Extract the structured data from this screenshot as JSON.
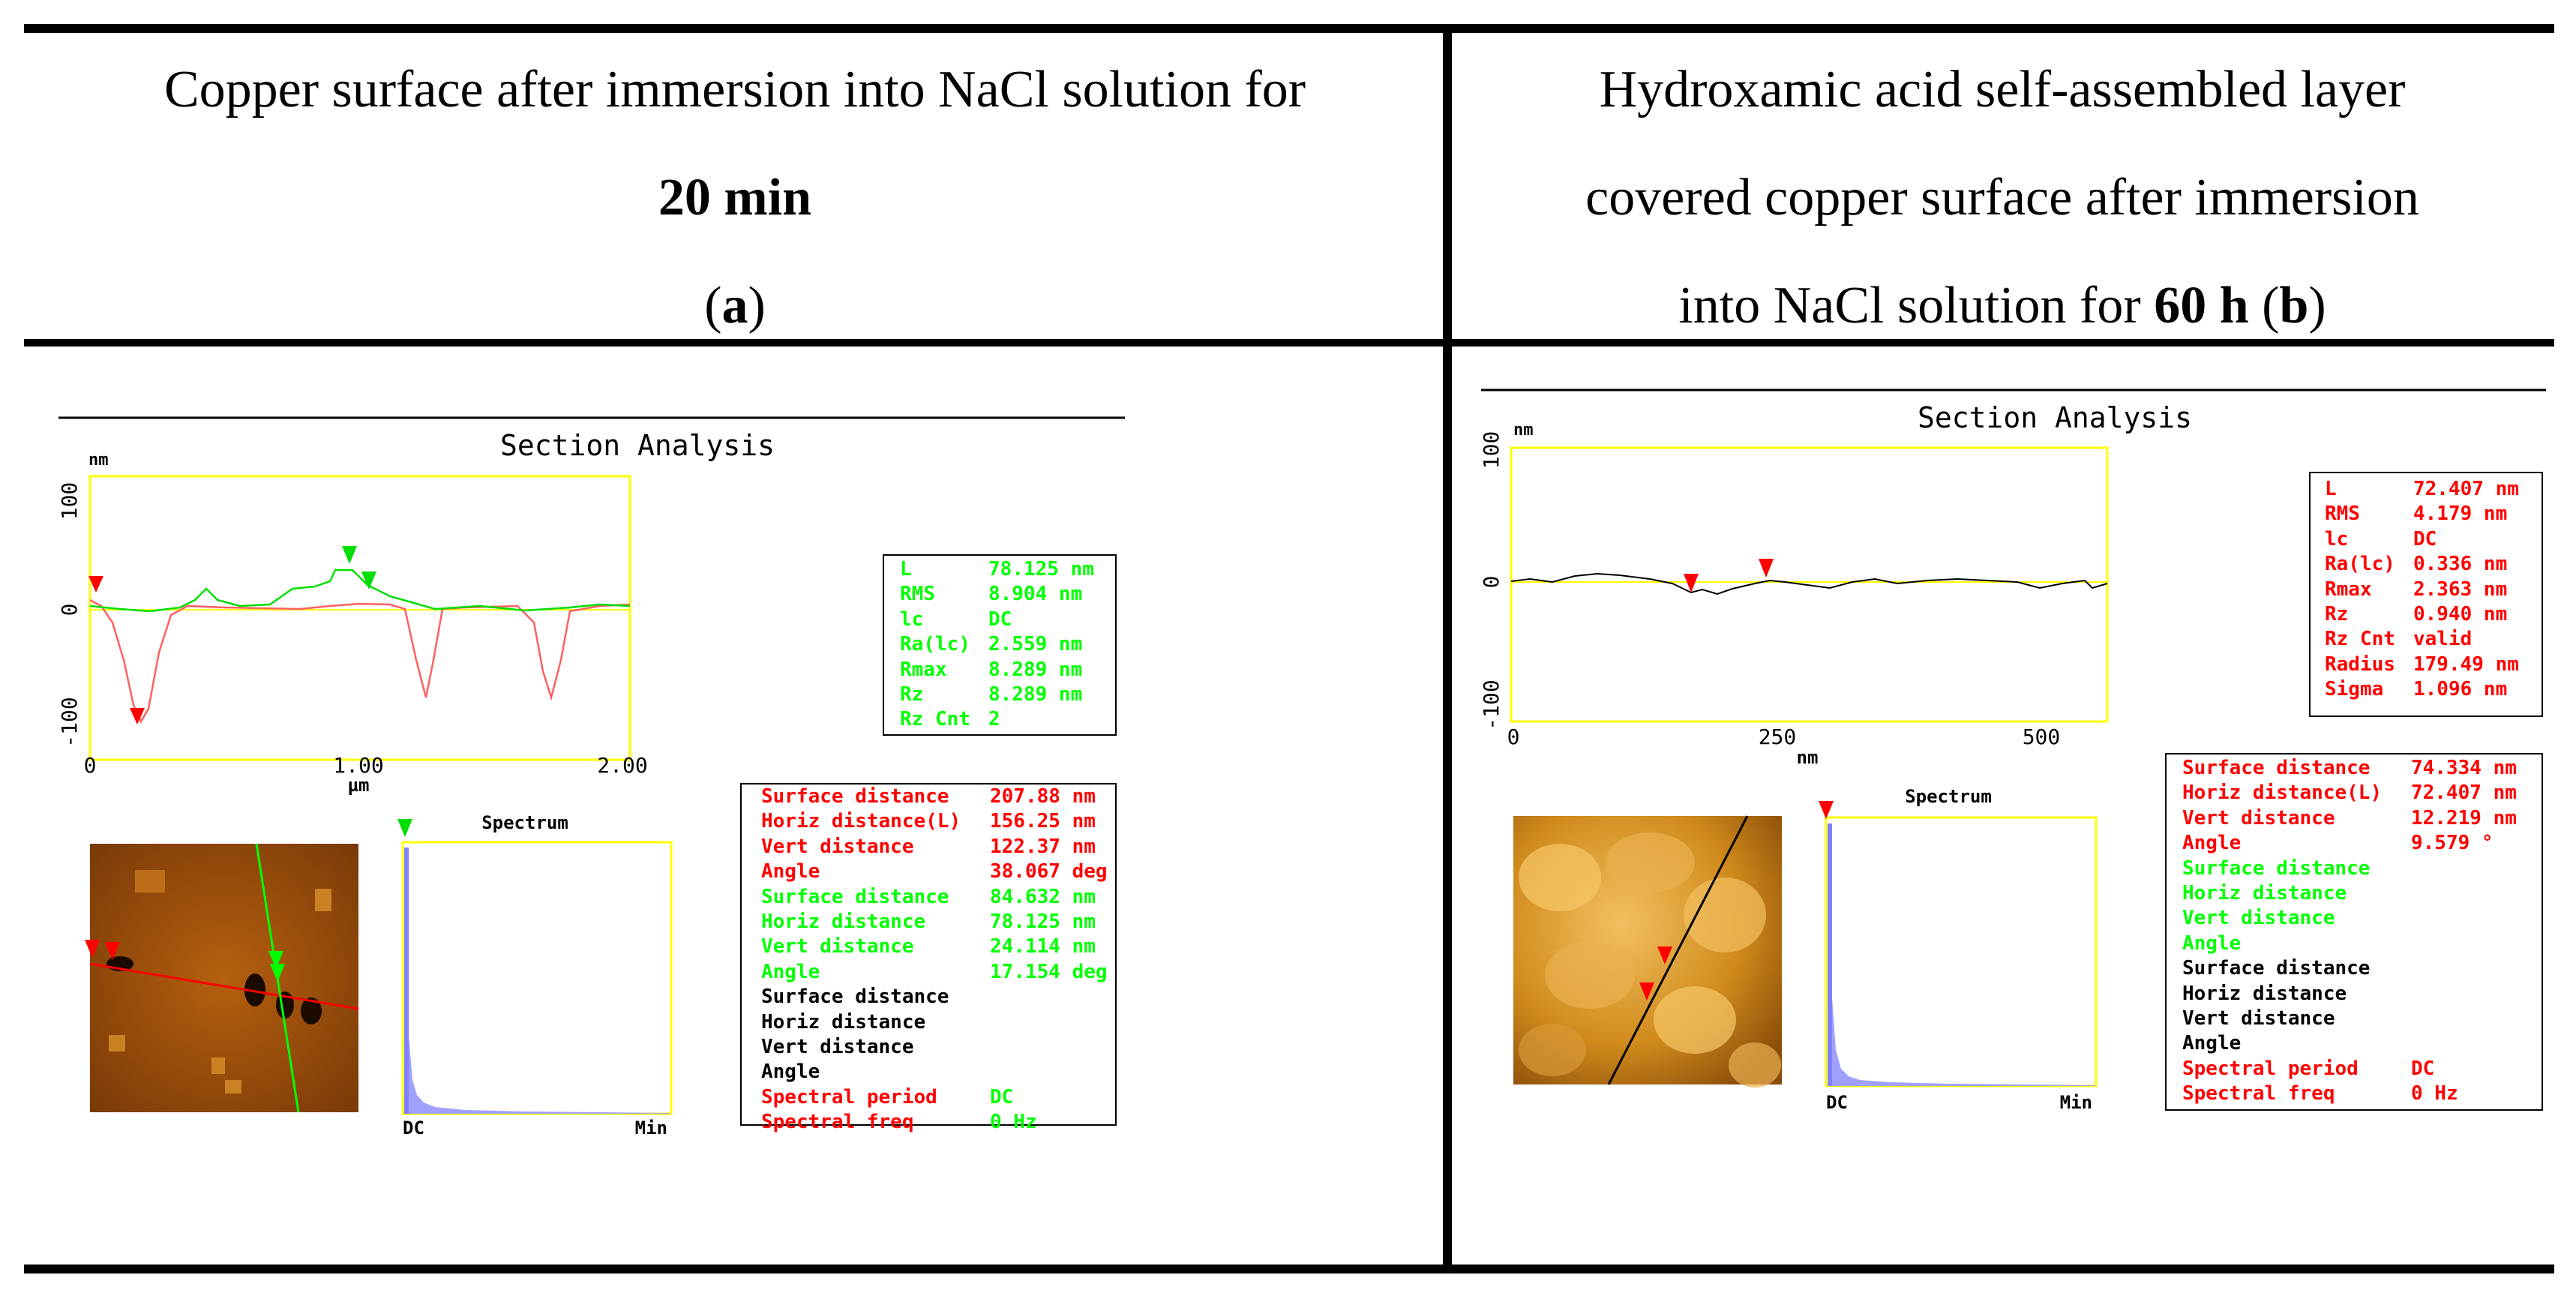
{
  "table": {
    "left_header": {
      "line1": "Copper surface after immersion into NaCl solution for",
      "line2_bold": "20 min",
      "label_open": "(",
      "label_bold": "a",
      "label_close": ")"
    },
    "right_header": {
      "line1": "Hydroxamic acid self-assembled layer",
      "line2": "covered copper surface after immersion",
      "line3_pre": "into NaCl solution for ",
      "line3_bold": "60 h",
      "line3_mid": " (",
      "label_bold": "b",
      "line3_close": ")"
    }
  },
  "panel_a": {
    "title": "Section Analysis",
    "y_unit": "nm",
    "y_ticks": [
      "100",
      "0",
      "-100"
    ],
    "x_ticks": [
      "0",
      "1.00",
      "2.00"
    ],
    "x_unit": "µm",
    "spectrum_title": "Spectrum",
    "spectrum_x_left": "DC",
    "spectrum_x_right": "Min",
    "stats_box": [
      {
        "key": "L",
        "value": "78.125 nm",
        "color": "green"
      },
      {
        "key": "RMS",
        "value": "8.904 nm",
        "color": "green"
      },
      {
        "key": "lc",
        "value": "DC",
        "color": "green"
      },
      {
        "key": "Ra(lc)",
        "value": "2.559 nm",
        "color": "green"
      },
      {
        "key": "Rmax",
        "value": "8.289 nm",
        "color": "green"
      },
      {
        "key": "Rz",
        "value": "8.289 nm",
        "color": "green"
      },
      {
        "key": "Rz Cnt",
        "value": "2",
        "color": "green"
      }
    ],
    "measure_box": [
      {
        "key": "Surface distance",
        "value": "207.88 nm",
        "color": "red",
        "vcolor": "red"
      },
      {
        "key": "Horiz distance(L)",
        "value": "156.25 nm",
        "color": "red",
        "vcolor": "red"
      },
      {
        "key": "Vert distance",
        "value": "122.37 nm",
        "color": "red",
        "vcolor": "red"
      },
      {
        "key": "Angle",
        "value": "38.067 deg",
        "color": "red",
        "vcolor": "red"
      },
      {
        "key": "Surface distance",
        "value": "84.632 nm",
        "color": "green",
        "vcolor": "green"
      },
      {
        "key": "Horiz distance",
        "value": "78.125 nm",
        "color": "green",
        "vcolor": "green"
      },
      {
        "key": "Vert distance",
        "value": "24.114 nm",
        "color": "green",
        "vcolor": "green"
      },
      {
        "key": "Angle",
        "value": "17.154 deg",
        "color": "green",
        "vcolor": "green"
      },
      {
        "key": "Surface distance",
        "value": "",
        "color": "black",
        "vcolor": "black"
      },
      {
        "key": "Horiz distance",
        "value": "",
        "color": "black",
        "vcolor": "black"
      },
      {
        "key": "Vert distance",
        "value": "",
        "color": "black",
        "vcolor": "black"
      },
      {
        "key": "Angle",
        "value": "",
        "color": "black",
        "vcolor": "black"
      },
      {
        "key": "Spectral period",
        "value": "DC",
        "color": "red",
        "vcolor": "green"
      },
      {
        "key": "Spectral freq",
        "value": "0 Hz",
        "color": "red",
        "vcolor": "green"
      }
    ]
  },
  "panel_b": {
    "title": "Section Analysis",
    "y_unit": "nm",
    "y_ticks": [
      "100",
      "0",
      "-100"
    ],
    "x_ticks": [
      "0",
      "250",
      "500"
    ],
    "x_unit": "nm",
    "spectrum_title": "Spectrum",
    "spectrum_x_left": "DC",
    "spectrum_x_right": "Min",
    "stats_box": [
      {
        "key": "L",
        "value": "72.407 nm",
        "color": "red"
      },
      {
        "key": "RMS",
        "value": "4.179 nm",
        "color": "red"
      },
      {
        "key": "lc",
        "value": "DC",
        "color": "red"
      },
      {
        "key": "Ra(lc)",
        "value": "0.336 nm",
        "color": "red"
      },
      {
        "key": "Rmax",
        "value": "2.363 nm",
        "color": "red"
      },
      {
        "key": "Rz",
        "value": "0.940 nm",
        "color": "red"
      },
      {
        "key": "Rz Cnt",
        "value": "valid",
        "color": "red"
      },
      {
        "key": "Radius",
        "value": "179.49 nm",
        "color": "red"
      },
      {
        "key": "Sigma",
        "value": "1.096 nm",
        "color": "red"
      }
    ],
    "measure_box": [
      {
        "key": "Surface distance",
        "value": "74.334 nm",
        "color": "red",
        "vcolor": "red"
      },
      {
        "key": "Horiz distance(L)",
        "value": "72.407 nm",
        "color": "red",
        "vcolor": "red"
      },
      {
        "key": "Vert distance",
        "value": "12.219 nm",
        "color": "red",
        "vcolor": "red"
      },
      {
        "key": "Angle",
        "value": "9.579 °",
        "color": "red",
        "vcolor": "red"
      },
      {
        "key": "Surface distance",
        "value": "",
        "color": "green",
        "vcolor": "green"
      },
      {
        "key": "Horiz distance",
        "value": "",
        "color": "green",
        "vcolor": "green"
      },
      {
        "key": "Vert distance",
        "value": "",
        "color": "green",
        "vcolor": "green"
      },
      {
        "key": "Angle",
        "value": "",
        "color": "green",
        "vcolor": "green"
      },
      {
        "key": "Surface distance",
        "value": "",
        "color": "black",
        "vcolor": "black"
      },
      {
        "key": "Horiz distance",
        "value": "",
        "color": "black",
        "vcolor": "black"
      },
      {
        "key": "Vert distance",
        "value": "",
        "color": "black",
        "vcolor": "black"
      },
      {
        "key": "Angle",
        "value": "",
        "color": "black",
        "vcolor": "black"
      },
      {
        "key": "Spectral period",
        "value": "DC",
        "color": "red",
        "vcolor": "red"
      },
      {
        "key": "Spectral freq",
        "value": "0 Hz",
        "color": "red",
        "vcolor": "red"
      }
    ]
  },
  "colors": {
    "red": "#ff0000",
    "green": "#00ff00",
    "yellow_frame": "#ffff00",
    "spectrum_bar": "#8080ff"
  }
}
